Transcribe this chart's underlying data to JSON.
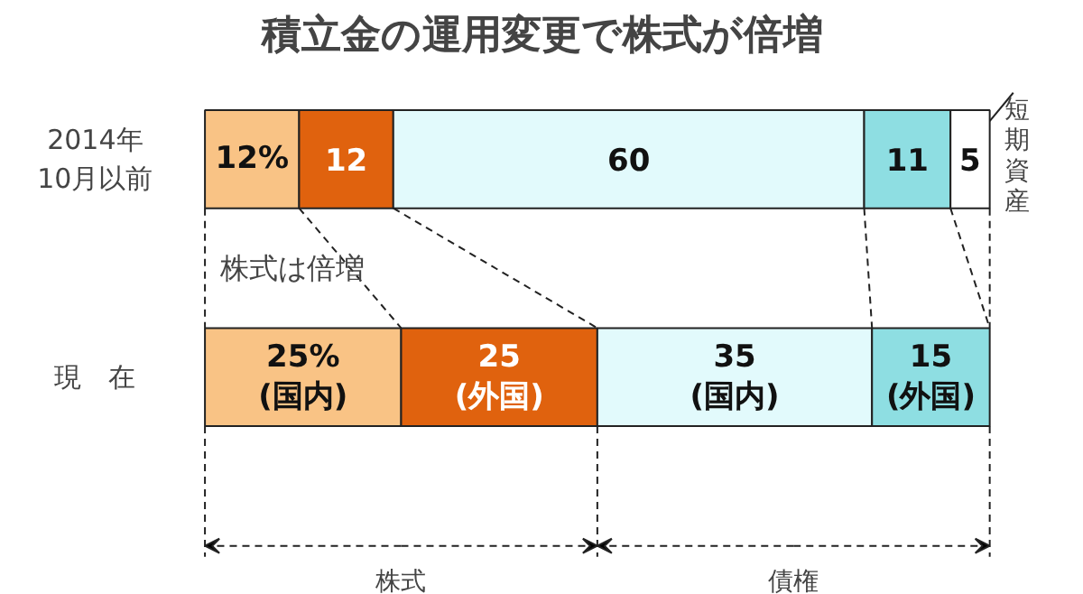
{
  "chart_data": {
    "type": "bar",
    "orientation": "horizontal",
    "stacked": true,
    "title": "積立金の運用変更で株式が倍増",
    "categories": [
      "2014年\n10月以前",
      "現　在"
    ],
    "series": [
      {
        "color": "#f9c385",
        "values": [
          12,
          25
        ],
        "value_labels": [
          "12%",
          "25%\n(国内)"
        ]
      },
      {
        "color": "#e0620e",
        "values": [
          12,
          25
        ],
        "value_labels": [
          "12",
          "25\n(外国)"
        ]
      },
      {
        "color": "#e2fafc",
        "values": [
          60,
          35
        ],
        "value_labels": [
          "60",
          "35\n(国内)"
        ]
      },
      {
        "color": "#8edee2",
        "values": [
          11,
          15
        ],
        "value_labels": [
          "11",
          "15\n(外国)"
        ]
      },
      {
        "name": "短期資産",
        "color": "#ffffff",
        "values": [
          5,
          null
        ],
        "value_labels": [
          "5",
          null
        ]
      }
    ],
    "tick_labels": "y",
    "ref_lines": [
      {
        "axis": "x",
        "value": 50,
        "line_style": "dashed"
      }
    ],
    "annotations": [
      "株式は倍増",
      "株式",
      "債権"
    ]
  }
}
